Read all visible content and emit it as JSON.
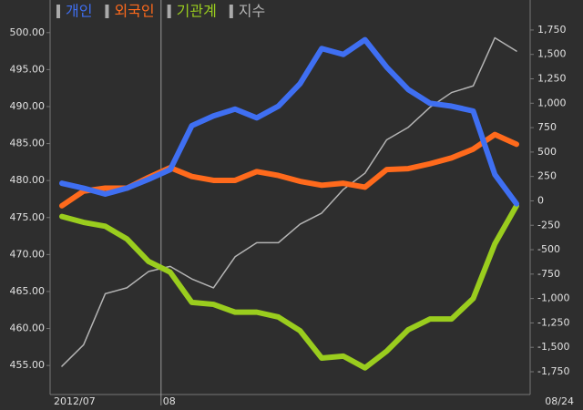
{
  "chart_data": {
    "type": "line",
    "categories": [
      "2012/07",
      null,
      null,
      null,
      null,
      "08",
      null,
      null,
      null,
      null,
      null,
      null,
      null,
      null,
      null,
      null,
      null,
      null,
      null,
      null,
      null,
      "08/24"
    ],
    "series": [
      {
        "name": "개인",
        "color": "#3f6ff2",
        "axis": "y2",
        "values": [
          180,
          130,
          70,
          130,
          220,
          320,
          770,
          870,
          940,
          850,
          970,
          1200,
          1560,
          1500,
          1650,
          1370,
          1140,
          1000,
          970,
          920,
          270,
          -30
        ]
      },
      {
        "name": "외국인",
        "color": "#ff6a1c",
        "axis": "y2",
        "values": [
          -50,
          100,
          130,
          130,
          240,
          340,
          250,
          210,
          210,
          300,
          260,
          200,
          160,
          180,
          140,
          320,
          330,
          380,
          440,
          530,
          680,
          580
        ]
      },
      {
        "name": "기관계",
        "color": "#9acd1e",
        "axis": "y2",
        "values": [
          -160,
          -220,
          -260,
          -390,
          -620,
          -730,
          -1040,
          -1060,
          -1140,
          -1140,
          -1190,
          -1330,
          -1610,
          -1590,
          -1710,
          -1540,
          -1320,
          -1210,
          -1210,
          -1000,
          -440,
          -50
        ]
      },
      {
        "name": "지수",
        "color": "#b4b4b4",
        "values": [
          454.9,
          457.8,
          464.7,
          465.5,
          467.7,
          468.4,
          466.7,
          465.5,
          469.7,
          471.6,
          471.6,
          474.1,
          475.6,
          478.8,
          481.0,
          485.5,
          487.2,
          489.9,
          491.9,
          492.8,
          499.3,
          497.5
        ]
      }
    ],
    "ylim": [
      451.2,
      501.7
    ],
    "yticks": [
      {
        "value": 455,
        "label": "455.00"
      },
      {
        "value": 460,
        "label": "460.00"
      },
      {
        "value": 465,
        "label": "465.00"
      },
      {
        "value": 470,
        "label": "470.00"
      },
      {
        "value": 475,
        "label": "475.00"
      },
      {
        "value": 480,
        "label": "480.00"
      },
      {
        "value": 485,
        "label": "485.00"
      },
      {
        "value": 490,
        "label": "490.00"
      },
      {
        "value": 495,
        "label": "495.00"
      },
      {
        "value": 500,
        "label": "500.00"
      }
    ],
    "y2lim": [
      -1974,
      1852
    ],
    "y2ticks": [
      {
        "value": -1750,
        "label": "-1,750"
      },
      {
        "value": -1500,
        "label": "-1,500"
      },
      {
        "value": -1250,
        "label": "-1,250"
      },
      {
        "value": -1000,
        "label": "-1,000"
      },
      -750,
      -500,
      -250,
      0,
      250,
      500,
      750,
      {
        "value": 1000,
        "label": "1,000"
      },
      {
        "value": 1250,
        "label": "1,250"
      },
      {
        "value": 1500,
        "label": "1,500"
      },
      {
        "value": 1750,
        "label": "1,750"
      }
    ]
  }
}
